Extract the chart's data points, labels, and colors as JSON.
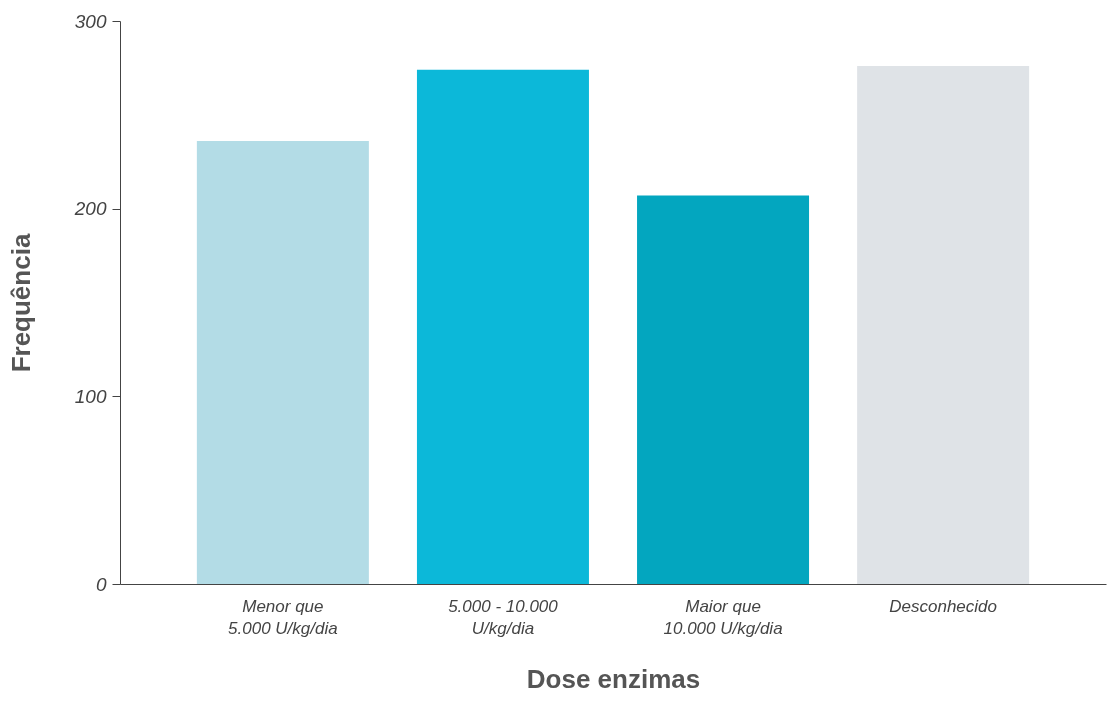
{
  "chart_data": {
    "type": "bar",
    "categories": [
      "Menor que\n5.000 U/kg/dia",
      "5.000 - 10.000\nU/kg/dia",
      "Maior que\n10.000 U/kg/dia",
      "Desconhecido"
    ],
    "values": [
      236,
      274,
      207,
      276
    ],
    "colors": [
      "#b3dce6",
      "#0cb8d9",
      "#03a6bf",
      "#dfe3e7"
    ],
    "xlabel": "Dose enzimas",
    "ylabel": "Frequência",
    "ylim": [
      0,
      300
    ],
    "yticks": [
      0,
      100,
      200,
      300
    ],
    "grid": false
  }
}
